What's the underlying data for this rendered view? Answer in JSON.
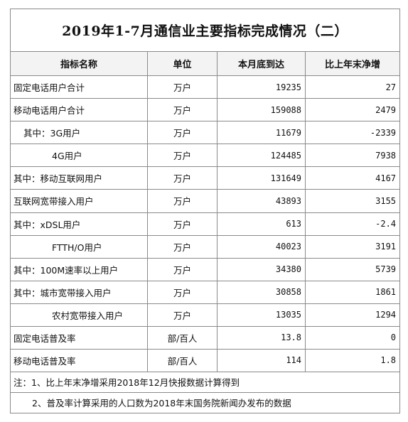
{
  "title": "2019年1-7月通信业主要指标完成情况（二）",
  "headers": [
    "指标名称",
    "单位",
    "本月底到达",
    "比上年末净增"
  ],
  "rows": [
    {
      "name": "固定电话用户合计",
      "unit": "万户",
      "value": "19235",
      "delta": "27"
    },
    {
      "name": "移动电话用户合计",
      "unit": "万户",
      "value": "159088",
      "delta": "2479"
    },
    {
      "name": "其中：3G用户",
      "unit": "万户",
      "value": "11679",
      "delta": "-2339"
    },
    {
      "name": "4G用户",
      "unit": "万户",
      "value": "124485",
      "delta": "7938"
    },
    {
      "name": "其中：移动互联网用户",
      "unit": "万户",
      "value": "131649",
      "delta": "4167"
    },
    {
      "name": "互联网宽带接入用户",
      "unit": "万户",
      "value": "43893",
      "delta": "3155"
    },
    {
      "name": "其中：xDSL用户",
      "unit": "万户",
      "value": "613",
      "delta": "-2.4"
    },
    {
      "name": "FTTH/O用户",
      "unit": "万户",
      "value": "40023",
      "delta": "3191"
    },
    {
      "name": "其中：100M速率以上用户",
      "unit": "万户",
      "value": "34380",
      "delta": "5739"
    },
    {
      "name": "其中：城市宽带接入用户",
      "unit": "万户",
      "value": "30858",
      "delta": "1861"
    },
    {
      "name": "农村宽带接入用户",
      "unit": "万户",
      "value": "13035",
      "delta": "1294"
    },
    {
      "name": "固定电话普及率",
      "unit": "部/百人",
      "value": "13.8",
      "delta": "0"
    },
    {
      "name": "移动电话普及率",
      "unit": "部/百人",
      "value": "114",
      "delta": "1.8"
    }
  ],
  "notes": [
    "注：1、比上年末净增采用2018年12月快报数据计算得到",
    "2、普及率计算采用的人口数为2018年末国务院新闻办发布的数据"
  ]
}
